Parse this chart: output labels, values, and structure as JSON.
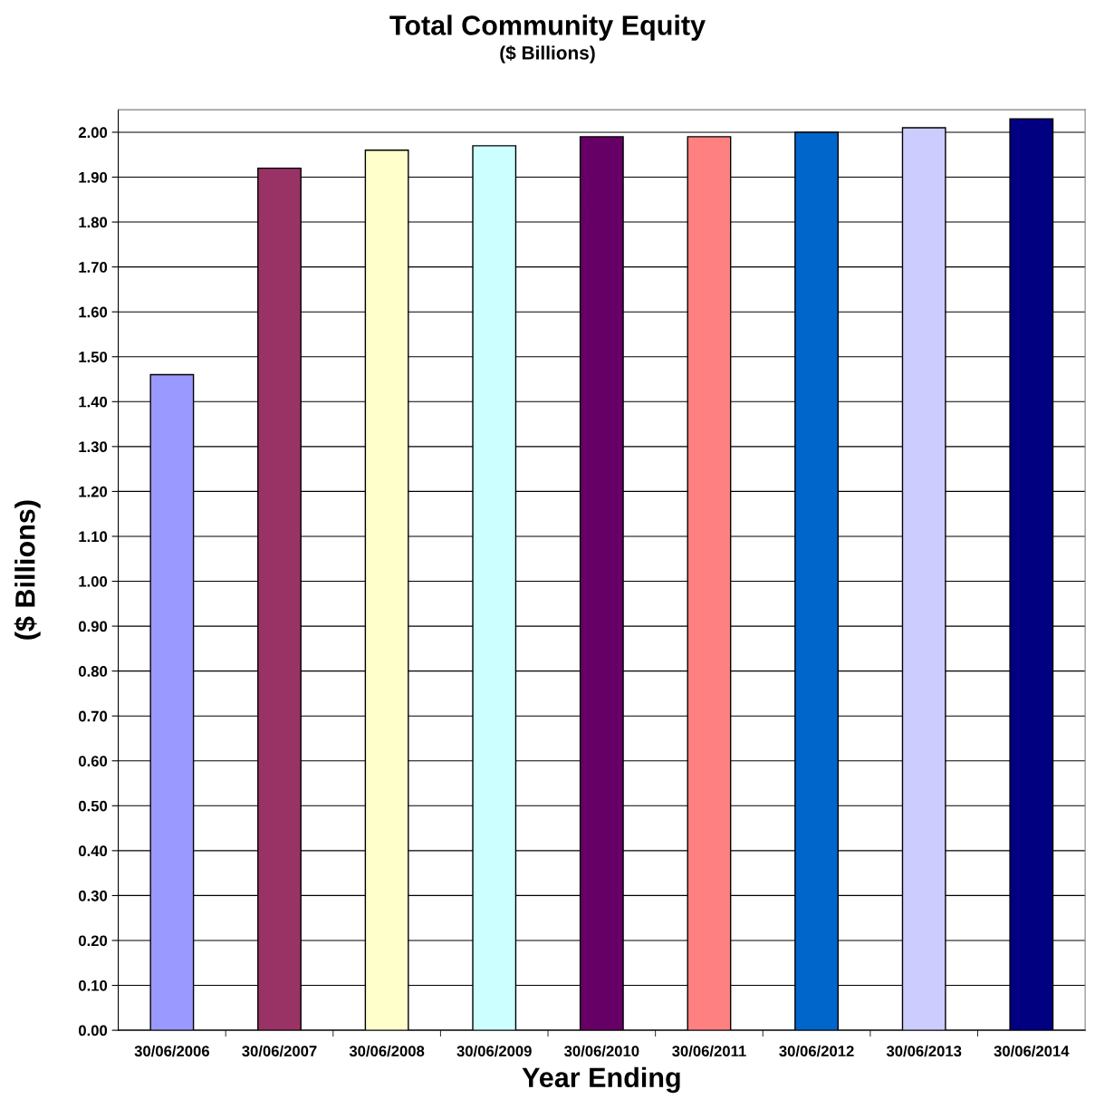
{
  "chart_data": {
    "type": "bar",
    "title": "Total Community Equity",
    "subtitle": "($ Billions)",
    "xlabel": "Year Ending",
    "ylabel": "($ Billions)",
    "categories": [
      "30/06/2006",
      "30/06/2007",
      "30/06/2008",
      "30/06/2009",
      "30/06/2010",
      "30/06/2011",
      "30/06/2012",
      "30/06/2013",
      "30/06/2014"
    ],
    "values": [
      1.46,
      1.92,
      1.96,
      1.97,
      1.99,
      1.99,
      2.0,
      2.01,
      2.03
    ],
    "colors": [
      "#9999ff",
      "#993366",
      "#ffffcc",
      "#ccffff",
      "#660066",
      "#ff8080",
      "#0066cc",
      "#ccccff",
      "#000080"
    ],
    "ylim": [
      0,
      2.05
    ],
    "yticks": [
      {
        "value": 0,
        "label": "0.00"
      },
      {
        "value": 0.1,
        "label": "0.10"
      },
      {
        "value": 0.2,
        "label": "0.20"
      },
      {
        "value": 0.3,
        "label": "0.30"
      },
      {
        "value": 0.4,
        "label": "0.40"
      },
      {
        "value": 0.5,
        "label": "0.50"
      },
      {
        "value": 0.6,
        "label": "0.60"
      },
      {
        "value": 0.7,
        "label": "0.70"
      },
      {
        "value": 0.8,
        "label": "0.80"
      },
      {
        "value": 0.9,
        "label": "0.90"
      },
      {
        "value": 1.0,
        "label": "1.00"
      },
      {
        "value": 1.1,
        "label": "1.10"
      },
      {
        "value": 1.2,
        "label": "1.20"
      },
      {
        "value": 1.3,
        "label": "1.30"
      },
      {
        "value": 1.4,
        "label": "1.40"
      },
      {
        "value": 1.5,
        "label": "1.50"
      },
      {
        "value": 1.6,
        "label": "1.60"
      },
      {
        "value": 1.7,
        "label": "1.70"
      },
      {
        "value": 1.8,
        "label": "1.80"
      },
      {
        "value": 1.9,
        "label": "1.90"
      },
      {
        "value": 2.0,
        "label": "2.00"
      }
    ],
    "grid": "y"
  }
}
